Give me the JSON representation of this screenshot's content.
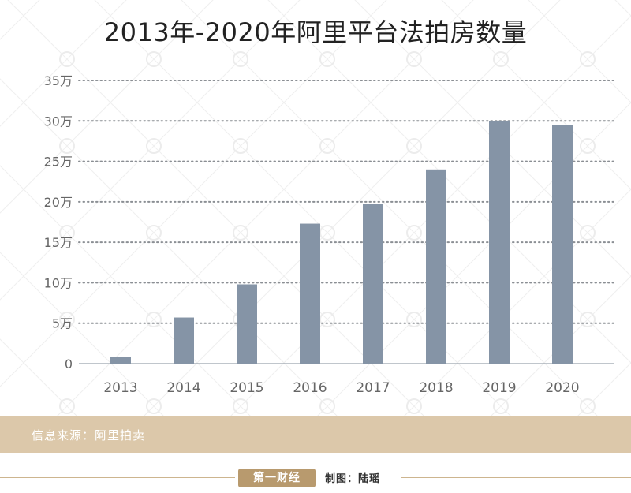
{
  "chart_data": {
    "type": "bar",
    "title": "2013年-2020年阿里平台法拍房数量",
    "categories": [
      "2013",
      "2014",
      "2015",
      "2016",
      "2017",
      "2018",
      "2019",
      "2020"
    ],
    "values": [
      8000,
      57000,
      98000,
      173000,
      197000,
      240000,
      300000,
      295000
    ],
    "ylim": [
      0,
      350000
    ],
    "y_ticks": [
      0,
      50000,
      100000,
      150000,
      200000,
      250000,
      300000,
      350000
    ],
    "y_tick_labels": [
      "0",
      "5万",
      "10万",
      "15万",
      "20万",
      "25万",
      "30万",
      "35万"
    ],
    "xlabel": "",
    "ylabel": "",
    "grid": "dotted horizontal",
    "bar_color": "#8594a6"
  },
  "footer": {
    "source": "信息来源：阿里拍卖",
    "logo": "第一财经",
    "credit": "制图：陆瑶"
  }
}
